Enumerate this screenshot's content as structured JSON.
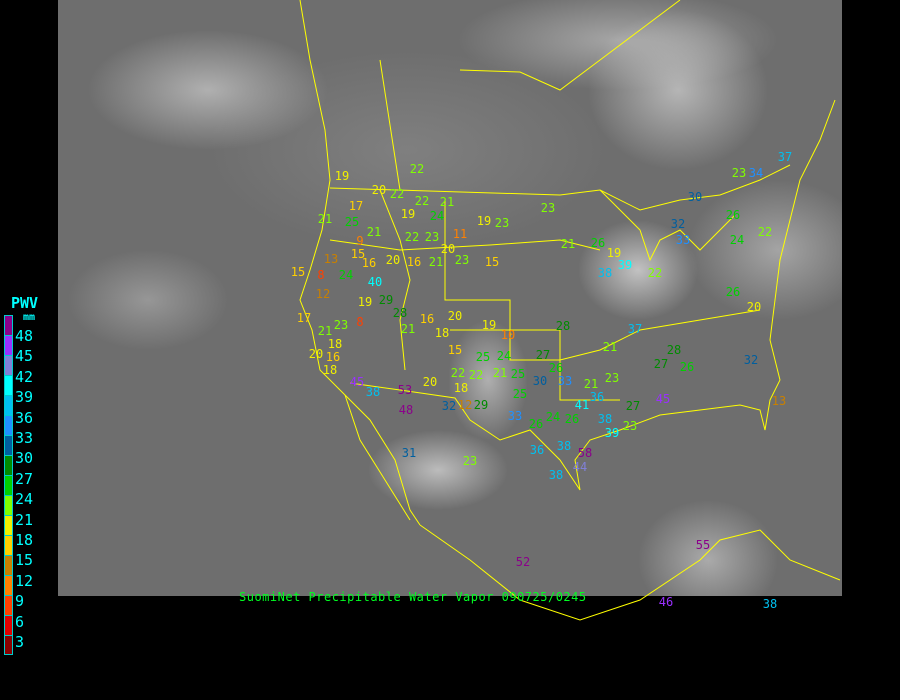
{
  "caption": "SuomiNet Precipitable Water Vapor 090725/0245",
  "legend": {
    "title": "PWV",
    "unit": "mm",
    "ticks": [
      "48",
      "45",
      "42",
      "39",
      "36",
      "33",
      "30",
      "27",
      "24",
      "21",
      "18",
      "15",
      "12",
      "9",
      "6",
      "3"
    ],
    "colors": [
      "#8b008b",
      "#9a30ff",
      "#8080d8",
      "#00ffff",
      "#00c0f0",
      "#2090ff",
      "#005f9f",
      "#008b00",
      "#00d000",
      "#80ff00",
      "#f0f000",
      "#ffd000",
      "#c88000",
      "#ff8000",
      "#ff4000",
      "#e00000",
      "#8b0000"
    ]
  },
  "boundary_color": "#ffff00",
  "stations": [
    "22",
    "19",
    "17",
    "20",
    "22",
    "22",
    "21",
    "19",
    "23",
    "23",
    "25",
    "24",
    "21",
    "19",
    "21",
    "22",
    "23",
    "11",
    "9",
    "15",
    "20",
    "21",
    "26",
    "19",
    "13",
    "16",
    "20",
    "16",
    "21",
    "23",
    "15",
    "15",
    "8",
    "24",
    "40",
    "38",
    "39",
    "22",
    "26",
    "20",
    "19",
    "29",
    "28",
    "21",
    "16",
    "20",
    "18",
    "19",
    "10",
    "12",
    "17",
    "21",
    "18",
    "8",
    "23",
    "16",
    "20",
    "18",
    "15",
    "25",
    "24",
    "27",
    "28",
    "21",
    "22",
    "22",
    "21",
    "25",
    "20",
    "18",
    "25",
    "26",
    "30",
    "33",
    "21",
    "23",
    "27",
    "28",
    "26",
    "32",
    "37",
    "36",
    "41",
    "38",
    "26",
    "24",
    "26",
    "33",
    "12",
    "29",
    "32",
    "53",
    "45",
    "38",
    "48",
    "31",
    "23",
    "36",
    "38",
    "58",
    "38",
    "44",
    "39",
    "23",
    "27",
    "45",
    "13",
    "52",
    "55",
    "46",
    "38",
    "34",
    "37",
    "26",
    "24",
    "22",
    "30",
    "32",
    "33",
    "23"
  ]
}
